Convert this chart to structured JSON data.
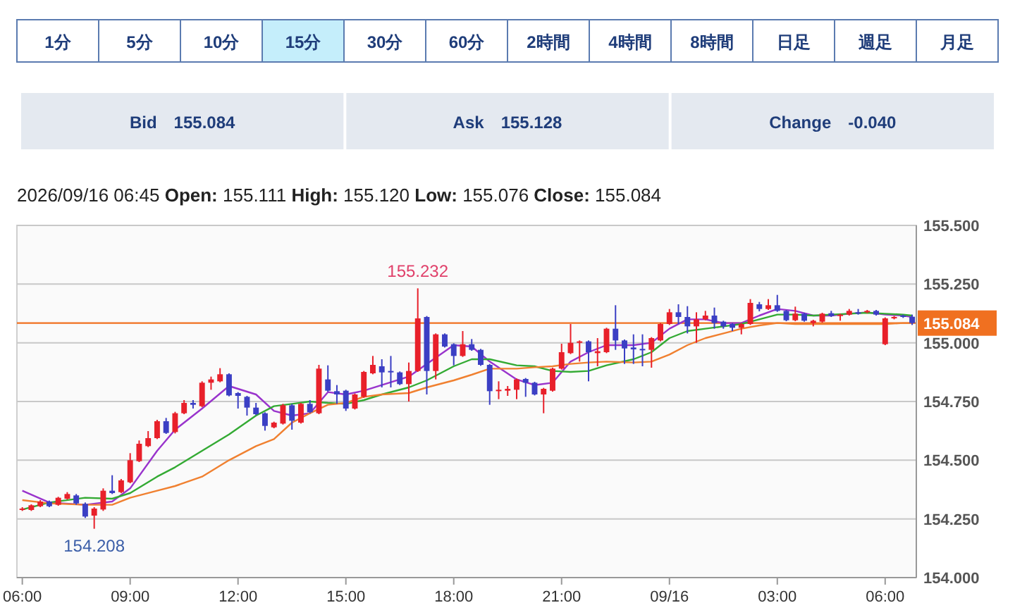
{
  "chart_data": {
    "type": "candlestick",
    "title": "2026/09/16 06:45 Open: 155.111 High: 155.120 Low: 155.076 Close: 155.084",
    "annotations": [
      "1分",
      "5分",
      "10分",
      "15分",
      "30分",
      "60分",
      "2時間",
      "4時間",
      "8時間",
      "日足",
      "週足",
      "月足",
      "Bid",
      "155.084",
      "Ask",
      "155.128",
      "Change",
      "-0.040",
      {
        "text": "155.232",
        "x": "2026-09-15T17:00",
        "y": 155.232
      },
      {
        "text": "154.208",
        "x": "2026-09-15T08:00",
        "y": 154.208
      }
    ],
    "x": [
      "2026-09-15T06:00",
      "2026-09-15T06:15",
      "2026-09-15T06:30",
      "2026-09-15T06:45",
      "2026-09-15T07:00",
      "2026-09-15T07:15",
      "2026-09-15T07:30",
      "2026-09-15T07:45",
      "2026-09-15T08:00",
      "2026-09-15T08:15",
      "2026-09-15T08:30",
      "2026-09-15T08:45",
      "2026-09-15T09:00",
      "2026-09-15T09:15",
      "2026-09-15T09:30",
      "2026-09-15T09:45",
      "2026-09-15T10:00",
      "2026-09-15T10:15",
      "2026-09-15T10:30",
      "2026-09-15T10:45",
      "2026-09-15T11:00",
      "2026-09-15T11:15",
      "2026-09-15T11:30",
      "2026-09-15T11:45",
      "2026-09-15T12:00",
      "2026-09-15T12:15",
      "2026-09-15T12:30",
      "2026-09-15T12:45",
      "2026-09-15T13:00",
      "2026-09-15T13:15",
      "2026-09-15T13:30",
      "2026-09-15T13:45",
      "2026-09-15T14:00",
      "2026-09-15T14:15",
      "2026-09-15T14:30",
      "2026-09-15T14:45",
      "2026-09-15T15:00",
      "2026-09-15T15:15",
      "2026-09-15T15:30",
      "2026-09-15T15:45",
      "2026-09-15T16:00",
      "2026-09-15T16:15",
      "2026-09-15T16:30",
      "2026-09-15T16:45",
      "2026-09-15T17:00",
      "2026-09-15T17:15",
      "2026-09-15T17:30",
      "2026-09-15T17:45",
      "2026-09-15T18:00",
      "2026-09-15T18:15",
      "2026-09-15T18:30",
      "2026-09-15T18:45",
      "2026-09-15T19:00",
      "2026-09-15T19:15",
      "2026-09-15T19:30",
      "2026-09-15T19:45",
      "2026-09-15T20:00",
      "2026-09-15T20:15",
      "2026-09-15T20:30",
      "2026-09-15T20:45",
      "2026-09-15T21:00",
      "2026-09-15T21:15",
      "2026-09-15T21:30",
      "2026-09-15T21:45",
      "2026-09-15T22:00",
      "2026-09-15T22:15",
      "2026-09-15T22:30",
      "2026-09-15T22:45",
      "2026-09-15T23:00",
      "2026-09-15T23:15",
      "2026-09-15T23:30",
      "2026-09-15T23:45",
      "2026-09-16T00:00",
      "2026-09-16T00:15",
      "2026-09-16T00:30",
      "2026-09-16T00:45",
      "2026-09-16T01:00",
      "2026-09-16T01:15",
      "2026-09-16T01:30",
      "2026-09-16T01:45",
      "2026-09-16T02:00",
      "2026-09-16T02:15",
      "2026-09-16T02:30",
      "2026-09-16T02:45",
      "2026-09-16T03:00",
      "2026-09-16T03:15",
      "2026-09-16T03:30",
      "2026-09-16T03:45",
      "2026-09-16T04:00",
      "2026-09-16T04:15",
      "2026-09-16T04:30",
      "2026-09-16T04:45",
      "2026-09-16T05:00",
      "2026-09-16T05:15",
      "2026-09-16T05:30",
      "2026-09-16T05:45",
      "2026-09-16T06:00",
      "2026-09-16T06:15",
      "2026-09-16T06:30",
      "2026-09-16T06:45"
    ],
    "ohlc": [
      [
        154.288,
        154.3,
        154.284,
        154.294
      ],
      [
        154.288,
        154.312,
        154.284,
        154.308
      ],
      [
        154.304,
        154.33,
        154.3,
        154.324
      ],
      [
        154.324,
        154.328,
        154.3,
        154.304
      ],
      [
        154.31,
        154.344,
        154.306,
        154.34
      ],
      [
        154.336,
        154.364,
        154.332,
        154.356
      ],
      [
        154.35,
        154.356,
        154.31,
        154.316
      ],
      [
        154.314,
        154.32,
        154.254,
        154.26
      ],
      [
        154.264,
        154.3,
        154.208,
        154.294
      ],
      [
        154.29,
        154.38,
        154.284,
        154.37
      ],
      [
        154.37,
        154.436,
        154.356,
        154.36
      ],
      [
        154.364,
        154.42,
        154.36,
        154.414
      ],
      [
        154.406,
        154.53,
        154.402,
        154.5
      ],
      [
        154.496,
        154.584,
        154.492,
        154.57
      ],
      [
        154.56,
        154.624,
        154.556,
        154.594
      ],
      [
        154.594,
        154.672,
        154.59,
        154.666
      ],
      [
        154.666,
        154.68,
        154.612,
        154.616
      ],
      [
        154.62,
        154.706,
        154.614,
        154.7
      ],
      [
        154.7,
        154.756,
        154.696,
        154.744
      ],
      [
        154.744,
        154.756,
        154.72,
        154.736
      ],
      [
        154.73,
        154.836,
        154.726,
        154.83
      ],
      [
        154.83,
        154.856,
        154.8,
        154.844
      ],
      [
        154.836,
        154.892,
        154.832,
        154.866
      ],
      [
        154.866,
        154.87,
        154.772,
        154.776
      ],
      [
        154.786,
        154.79,
        154.72,
        154.774
      ],
      [
        154.77,
        154.774,
        154.69,
        154.724
      ],
      [
        154.724,
        154.744,
        154.692,
        154.696
      ],
      [
        154.7,
        154.704,
        154.626,
        154.646
      ],
      [
        154.64,
        154.664,
        154.636,
        154.66
      ],
      [
        154.656,
        154.74,
        154.652,
        154.734
      ],
      [
        154.734,
        154.74,
        154.63,
        154.668
      ],
      [
        154.66,
        154.744,
        154.656,
        154.74
      ],
      [
        154.74,
        154.756,
        154.7,
        154.704
      ],
      [
        154.7,
        154.906,
        154.696,
        154.89
      ],
      [
        154.844,
        154.904,
        154.792,
        154.796
      ],
      [
        154.794,
        154.82,
        154.74,
        154.78
      ],
      [
        154.796,
        154.8,
        154.71,
        154.72
      ],
      [
        154.72,
        154.784,
        154.716,
        154.78
      ],
      [
        154.77,
        154.88,
        154.766,
        154.876
      ],
      [
        154.87,
        154.944,
        154.866,
        154.906
      ],
      [
        154.9,
        154.93,
        154.81,
        154.874
      ],
      [
        154.88,
        154.944,
        154.81,
        154.874
      ],
      [
        154.874,
        154.878,
        154.82,
        154.824
      ],
      [
        154.824,
        154.916,
        154.75,
        154.88
      ],
      [
        154.88,
        155.232,
        154.876,
        155.104
      ],
      [
        155.11,
        155.114,
        154.78,
        154.88
      ],
      [
        154.88,
        155.04,
        154.844,
        155.036
      ],
      [
        155.036,
        155.04,
        154.98,
        154.984
      ],
      [
        154.994,
        154.998,
        154.904,
        154.944
      ],
      [
        154.944,
        155.05,
        154.94,
        154.994
      ],
      [
        154.994,
        155.016,
        154.966,
        154.97
      ],
      [
        154.97,
        154.974,
        154.902,
        154.906
      ],
      [
        154.906,
        154.91,
        154.736,
        154.794
      ],
      [
        154.796,
        154.836,
        154.76,
        154.8
      ],
      [
        154.796,
        154.816,
        154.774,
        154.804
      ],
      [
        154.8,
        154.848,
        154.76,
        154.844
      ],
      [
        154.846,
        154.85,
        154.77,
        154.83
      ],
      [
        154.83,
        154.834,
        154.776,
        154.78
      ],
      [
        154.78,
        154.808,
        154.7,
        154.804
      ],
      [
        154.796,
        154.894,
        154.792,
        154.89
      ],
      [
        154.89,
        154.996,
        154.886,
        154.96
      ],
      [
        154.956,
        155.08,
        154.952,
        155.0
      ],
      [
        155.0,
        155.01,
        154.92,
        155.006
      ],
      [
        155.006,
        155.01,
        154.836,
        154.96
      ],
      [
        154.956,
        155.02,
        154.9,
        154.964
      ],
      [
        154.96,
        155.064,
        154.956,
        155.06
      ],
      [
        155.06,
        155.16,
        154.97,
        155.01
      ],
      [
        155.01,
        155.014,
        154.91,
        154.976
      ],
      [
        154.98,
        155.036,
        154.91,
        154.972
      ],
      [
        154.974,
        155.036,
        154.9,
        154.97
      ],
      [
        154.97,
        155.024,
        154.894,
        155.02
      ],
      [
        155.01,
        155.084,
        155.006,
        155.08
      ],
      [
        155.08,
        155.144,
        155.076,
        155.13
      ],
      [
        155.13,
        155.164,
        155.08,
        155.11
      ],
      [
        155.11,
        155.156,
        155.04,
        155.07
      ],
      [
        155.07,
        155.13,
        155.0,
        155.1
      ],
      [
        155.1,
        155.136,
        155.096,
        155.116
      ],
      [
        155.116,
        155.15,
        155.06,
        155.084
      ],
      [
        155.09,
        155.094,
        155.06,
        155.07
      ],
      [
        155.08,
        155.084,
        155.05,
        155.064
      ],
      [
        155.064,
        155.084,
        155.036,
        155.08
      ],
      [
        155.08,
        155.186,
        155.076,
        155.17
      ],
      [
        155.164,
        155.174,
        155.134,
        155.144
      ],
      [
        155.144,
        155.186,
        155.14,
        155.16
      ],
      [
        155.16,
        155.204,
        155.132,
        155.136
      ],
      [
        155.136,
        155.14,
        155.092,
        155.096
      ],
      [
        155.096,
        155.154,
        155.092,
        155.124
      ],
      [
        155.124,
        155.128,
        155.09,
        155.094
      ],
      [
        155.084,
        155.098,
        155.07,
        155.094
      ],
      [
        155.09,
        155.128,
        155.086,
        155.124
      ],
      [
        155.126,
        155.136,
        155.11,
        155.114
      ],
      [
        155.114,
        155.124,
        155.094,
        155.12
      ],
      [
        155.12,
        155.144,
        155.116,
        155.136
      ],
      [
        155.13,
        155.144,
        155.12,
        155.124
      ],
      [
        155.13,
        155.14,
        155.126,
        155.136
      ],
      [
        155.136,
        155.14,
        155.116,
        155.12
      ],
      [
        154.994,
        155.108,
        154.99,
        155.104
      ],
      [
        155.104,
        155.114,
        155.1,
        155.11
      ],
      [
        155.116,
        155.12,
        155.106,
        155.11
      ],
      [
        155.111,
        155.12,
        155.076,
        155.084
      ]
    ],
    "series": [
      {
        "type": "line",
        "color": "#9933cc",
        "x": [
          "2026-09-15T06:00",
          "2026-09-15T06:45",
          "2026-09-15T07:45",
          "2026-09-15T08:30",
          "2026-09-15T09:00",
          "2026-09-15T09:45",
          "2026-09-15T10:15",
          "2026-09-15T11:00",
          "2026-09-15T11:45",
          "2026-09-15T12:30",
          "2026-09-15T13:00",
          "2026-09-15T13:30",
          "2026-09-15T14:00",
          "2026-09-15T14:30",
          "2026-09-15T15:00",
          "2026-09-15T15:30",
          "2026-09-15T16:00",
          "2026-09-15T16:45",
          "2026-09-15T17:15",
          "2026-09-15T18:00",
          "2026-09-15T18:30",
          "2026-09-15T19:00",
          "2026-09-15T19:45",
          "2026-09-15T20:15",
          "2026-09-15T20:45",
          "2026-09-15T21:15",
          "2026-09-15T21:45",
          "2026-09-15T22:15",
          "2026-09-15T23:00",
          "2026-09-15T23:30",
          "2026-09-16T00:00",
          "2026-09-16T00:30",
          "2026-09-16T01:00",
          "2026-09-16T01:30",
          "2026-09-16T02:00",
          "2026-09-16T02:30",
          "2026-09-16T03:00",
          "2026-09-16T03:30",
          "2026-09-16T04:00",
          "2026-09-16T04:30",
          "2026-09-16T05:00",
          "2026-09-16T05:30",
          "2026-09-16T06:00",
          "2026-09-16T06:30",
          "2026-09-16T06:45"
        ],
        "values": [
          154.37,
          154.32,
          154.31,
          154.324,
          154.38,
          154.54,
          154.63,
          154.72,
          154.816,
          154.78,
          154.71,
          154.69,
          154.7,
          154.79,
          154.78,
          154.796,
          154.82,
          154.856,
          154.91,
          154.99,
          154.984,
          154.92,
          154.844,
          154.82,
          154.83,
          154.92,
          154.96,
          154.99,
          154.99,
          155.0,
          155.06,
          155.1,
          155.1,
          155.084,
          155.084,
          155.116,
          155.144,
          155.136,
          155.116,
          155.116,
          155.124,
          155.13,
          155.12,
          155.116,
          155.11
        ]
      },
      {
        "type": "line",
        "color": "#33aa33",
        "x": [
          "2026-09-15T06:00",
          "2026-09-15T06:45",
          "2026-09-15T07:45",
          "2026-09-15T08:30",
          "2026-09-15T09:00",
          "2026-09-15T09:45",
          "2026-09-15T10:15",
          "2026-09-15T11:00",
          "2026-09-15T11:45",
          "2026-09-15T12:30",
          "2026-09-15T13:00",
          "2026-09-15T13:30",
          "2026-09-15T14:00",
          "2026-09-15T14:30",
          "2026-09-15T15:00",
          "2026-09-15T15:30",
          "2026-09-15T16:00",
          "2026-09-15T16:45",
          "2026-09-15T17:15",
          "2026-09-15T18:00",
          "2026-09-15T18:30",
          "2026-09-15T19:00",
          "2026-09-15T19:45",
          "2026-09-15T20:15",
          "2026-09-15T20:45",
          "2026-09-15T21:15",
          "2026-09-15T21:45",
          "2026-09-15T22:15",
          "2026-09-15T23:00",
          "2026-09-15T23:30",
          "2026-09-16T00:00",
          "2026-09-16T00:30",
          "2026-09-16T01:00",
          "2026-09-16T01:30",
          "2026-09-16T02:00",
          "2026-09-16T02:30",
          "2026-09-16T03:00",
          "2026-09-16T03:30",
          "2026-09-16T04:00",
          "2026-09-16T04:30",
          "2026-09-16T05:00",
          "2026-09-16T05:30",
          "2026-09-16T06:00",
          "2026-09-16T06:30",
          "2026-09-16T06:45"
        ],
        "values": [
          154.29,
          154.32,
          154.34,
          154.336,
          154.36,
          154.43,
          154.47,
          154.54,
          154.61,
          154.69,
          154.73,
          154.74,
          154.75,
          154.744,
          154.74,
          154.756,
          154.78,
          154.81,
          154.84,
          154.9,
          154.93,
          154.93,
          154.904,
          154.9,
          154.88,
          154.876,
          154.88,
          154.904,
          154.93,
          154.96,
          155.02,
          155.05,
          155.06,
          155.07,
          155.08,
          155.1,
          155.12,
          155.12,
          155.116,
          155.12,
          155.124,
          155.128,
          155.124,
          155.12,
          155.116
        ]
      },
      {
        "type": "line",
        "color": "#f08030",
        "x": [
          "2026-09-15T06:00",
          "2026-09-15T06:45",
          "2026-09-15T07:45",
          "2026-09-15T08:30",
          "2026-09-15T09:00",
          "2026-09-15T09:45",
          "2026-09-15T10:15",
          "2026-09-15T11:00",
          "2026-09-15T11:45",
          "2026-09-15T12:30",
          "2026-09-15T13:00",
          "2026-09-15T13:30",
          "2026-09-15T14:00",
          "2026-09-15T14:30",
          "2026-09-15T15:00",
          "2026-09-15T15:30",
          "2026-09-15T16:00",
          "2026-09-15T16:45",
          "2026-09-15T17:15",
          "2026-09-15T18:00",
          "2026-09-15T18:30",
          "2026-09-15T19:00",
          "2026-09-15T19:45",
          "2026-09-15T20:15",
          "2026-09-15T20:45",
          "2026-09-15T21:15",
          "2026-09-15T21:45",
          "2026-09-15T22:15",
          "2026-09-15T23:00",
          "2026-09-15T23:30",
          "2026-09-16T00:00",
          "2026-09-16T00:30",
          "2026-09-16T01:00",
          "2026-09-16T01:30",
          "2026-09-16T02:00",
          "2026-09-16T02:30",
          "2026-09-16T03:00",
          "2026-09-16T03:30",
          "2026-09-16T04:00",
          "2026-09-16T04:30",
          "2026-09-16T05:00",
          "2026-09-16T05:30",
          "2026-09-16T06:00",
          "2026-09-16T06:30",
          "2026-09-16T06:45"
        ],
        "values": [
          154.33,
          154.316,
          154.31,
          154.31,
          154.34,
          154.37,
          154.39,
          154.43,
          154.5,
          154.56,
          154.59,
          154.66,
          154.7,
          154.736,
          154.744,
          154.77,
          154.78,
          154.786,
          154.81,
          154.84,
          154.864,
          154.89,
          154.89,
          154.896,
          154.9,
          154.91,
          154.916,
          154.92,
          154.916,
          154.92,
          154.95,
          154.99,
          155.02,
          155.04,
          155.06,
          155.074,
          155.084,
          155.08,
          155.08,
          155.08,
          155.08,
          155.08,
          155.08,
          155.084,
          155.084
        ]
      }
    ],
    "ref_lines": [
      {
        "axis": "y",
        "value": 155.084,
        "label": "155.084",
        "color": "#f07020"
      }
    ],
    "xlim": [
      "2026-09-15T05:51",
      "2026-09-16T06:52"
    ],
    "xticks": [
      {
        "value": "2026-09-15T06:00",
        "label": "06:00"
      },
      {
        "value": "2026-09-15T09:00",
        "label": "09:00"
      },
      {
        "value": "2026-09-15T12:00",
        "label": "12:00"
      },
      {
        "value": "2026-09-15T15:00",
        "label": "15:00"
      },
      {
        "value": "2026-09-15T18:00",
        "label": "18:00"
      },
      {
        "value": "2026-09-15T21:00",
        "label": "21:00"
      },
      {
        "value": "2026-09-16T00:00",
        "label": "09/16"
      },
      {
        "value": "2026-09-16T03:00",
        "label": "03:00"
      },
      {
        "value": "2026-09-16T06:00",
        "label": "06:00"
      }
    ],
    "ylim": [
      154,
      155.5
    ],
    "yticks": [
      {
        "value": 154,
        "label": "154.000"
      },
      {
        "value": 154.25,
        "label": "154.250"
      },
      {
        "value": 154.5,
        "label": "154.500"
      },
      {
        "value": 154.75,
        "label": "154.750"
      },
      {
        "value": 155,
        "label": "155.000"
      },
      {
        "value": 155.25,
        "label": "155.250"
      },
      {
        "value": 155.5,
        "label": "155.500"
      }
    ],
    "grid": "y"
  }
}
